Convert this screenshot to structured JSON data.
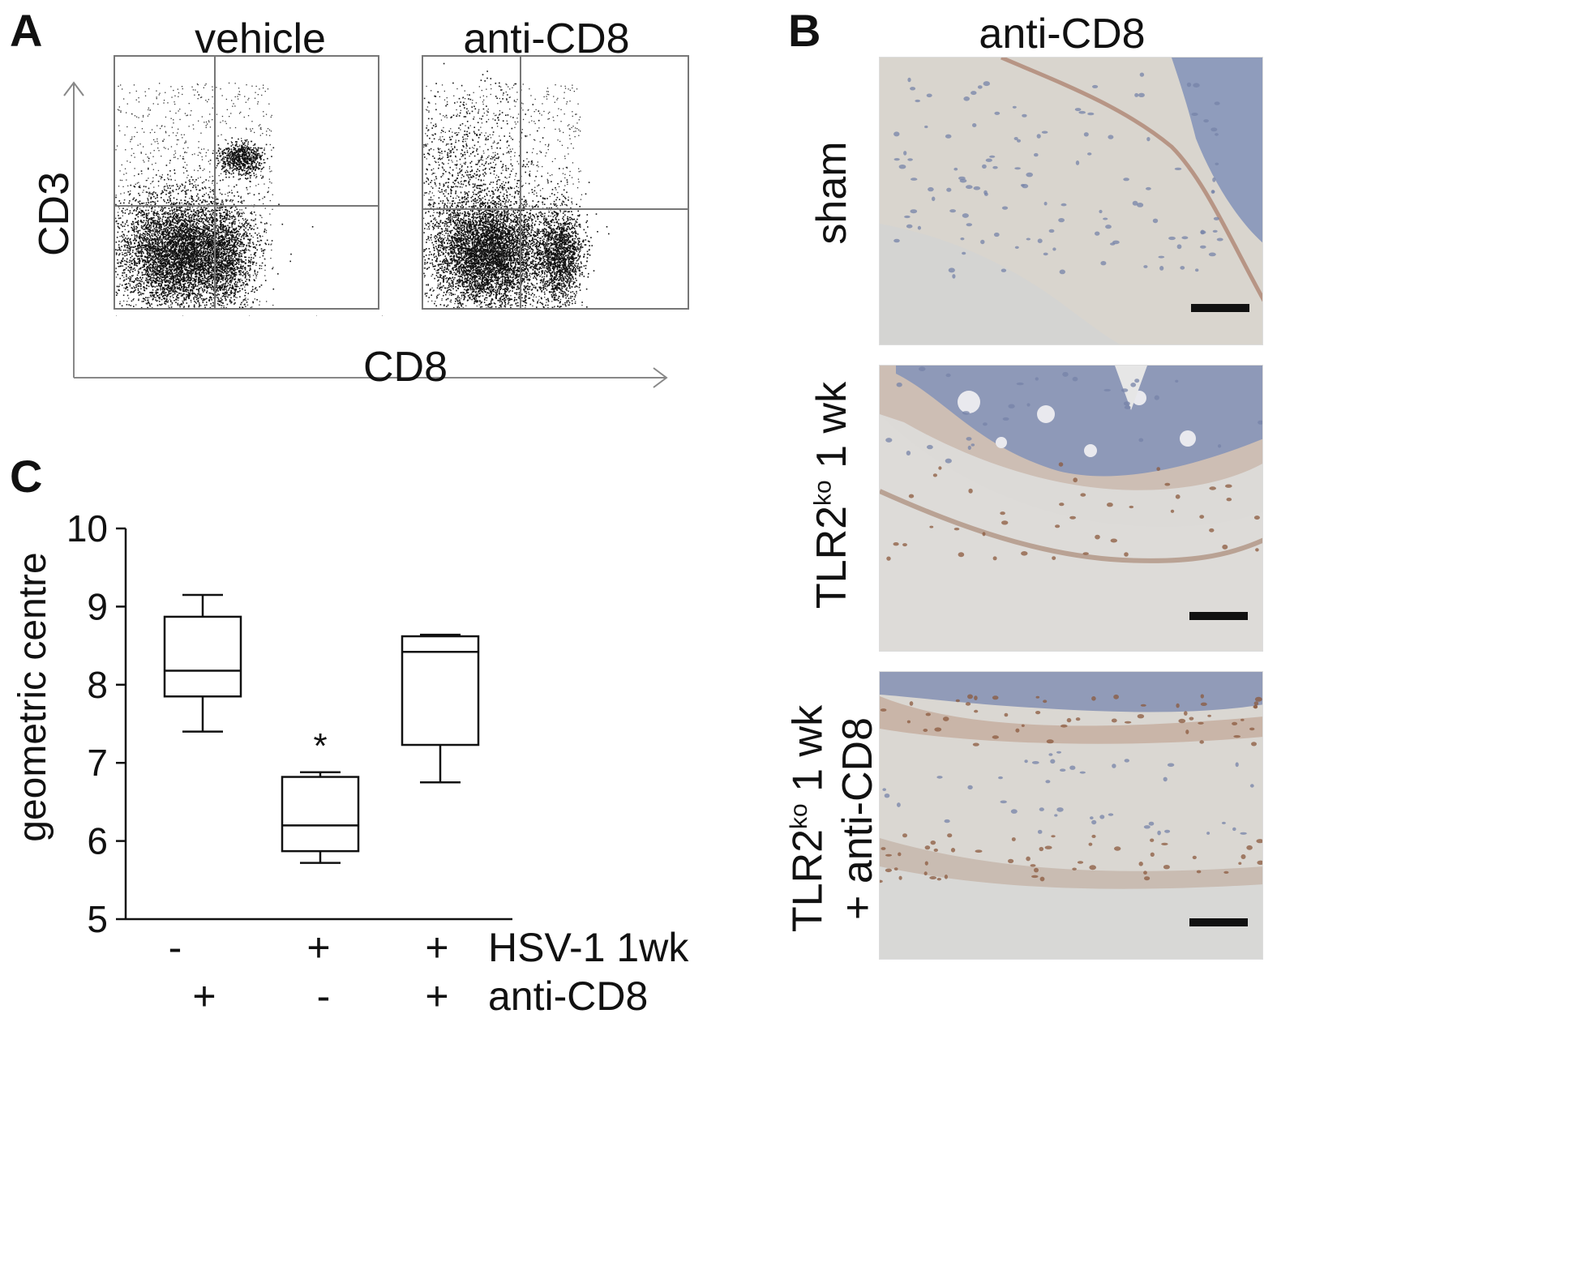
{
  "panels": {
    "a": "A",
    "b": "B",
    "c": "C"
  },
  "panel_a": {
    "plots": [
      {
        "title": "vehicle",
        "clusters": [
          "CD3+CD8+",
          "CD3-"
        ]
      },
      {
        "title": "anti-CD8",
        "clusters": [
          "CD3-",
          "CD3-CD8+"
        ]
      }
    ],
    "y_axis": "CD3",
    "x_axis": "CD8"
  },
  "panel_b": {
    "title": "anti-CD8",
    "rows": [
      {
        "line1": "sham",
        "line2": ""
      },
      {
        "line1": "TLR2ko 1 wk",
        "line2": ""
      },
      {
        "line1": "TLR2ko 1 wk",
        "line2": "+ anti-CD8"
      }
    ],
    "stain_colors": {
      "background": "#dad6cf",
      "nuclei": "#7d8cb4",
      "cd8": "#8a4a2a"
    }
  },
  "chart_data": {
    "type": "box",
    "ylabel": "geometric centre",
    "ylim": [
      5,
      10
    ],
    "yticks": [
      5,
      6,
      7,
      8,
      9,
      10
    ],
    "groups": [
      {
        "hsv": "-",
        "antiCD8": "+",
        "min": 7.4,
        "q1": 7.85,
        "median": 8.18,
        "q3": 8.87,
        "max": 9.15,
        "marker": ""
      },
      {
        "hsv": "+",
        "antiCD8": "-",
        "min": 5.72,
        "q1": 5.87,
        "median": 6.2,
        "q3": 6.82,
        "max": 6.88,
        "marker": "*"
      },
      {
        "hsv": "+",
        "antiCD8": "+",
        "min": 6.75,
        "q1": 7.23,
        "median": 8.42,
        "q3": 8.62,
        "max": 8.64,
        "marker": ""
      }
    ],
    "row_labels": [
      "HSV-1 1wk",
      "anti-CD8"
    ]
  }
}
